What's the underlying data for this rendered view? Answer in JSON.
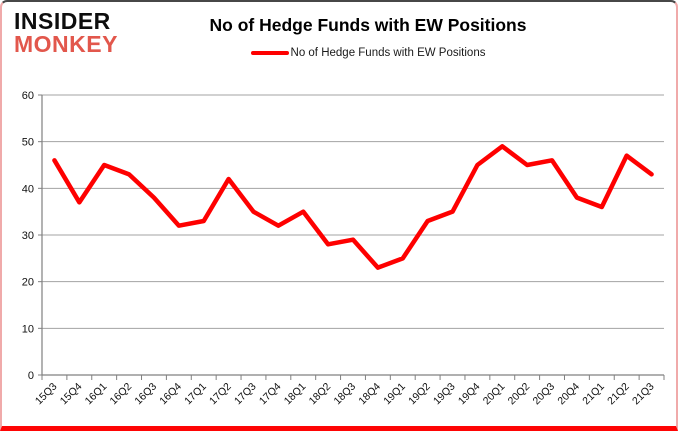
{
  "brand": {
    "line1": "INSIDER",
    "line2": "MONKEY",
    "line2_color": "#e2574c"
  },
  "header": {
    "title": "No of Hedge Funds with EW Positions"
  },
  "legend": {
    "label": "No of Hedge Funds with EW Positions",
    "swatch_color": "#fe0000"
  },
  "chart_data": {
    "type": "line",
    "title": "No of Hedge Funds with EW Positions",
    "categories": [
      "15Q3",
      "15Q4",
      "16Q1",
      "16Q2",
      "16Q3",
      "16Q4",
      "17Q1",
      "17Q2",
      "17Q3",
      "17Q4",
      "18Q1",
      "18Q2",
      "18Q3",
      "18Q4",
      "19Q1",
      "19Q2",
      "19Q3",
      "19Q4",
      "20Q1",
      "20Q2",
      "20Q3",
      "20Q4",
      "21Q1",
      "21Q2",
      "21Q3"
    ],
    "series": [
      {
        "name": "No of Hedge Funds with EW Positions",
        "color": "#fe0000",
        "values": [
          46,
          37,
          45,
          43,
          38,
          32,
          33,
          42,
          35,
          32,
          35,
          28,
          29,
          23,
          25,
          33,
          35,
          45,
          49,
          45,
          46,
          38,
          36,
          47,
          43
        ]
      }
    ],
    "xlabel": "",
    "ylabel": "",
    "ylim": [
      0,
      60
    ],
    "yticks": [
      0,
      10,
      20,
      30,
      40,
      50,
      60
    ],
    "grid": "horizontal",
    "legend_position": "top",
    "marker": "none"
  },
  "colors": {
    "gridline": "#a3a3a3",
    "axis": "#808080",
    "tick_text": "#111111"
  }
}
